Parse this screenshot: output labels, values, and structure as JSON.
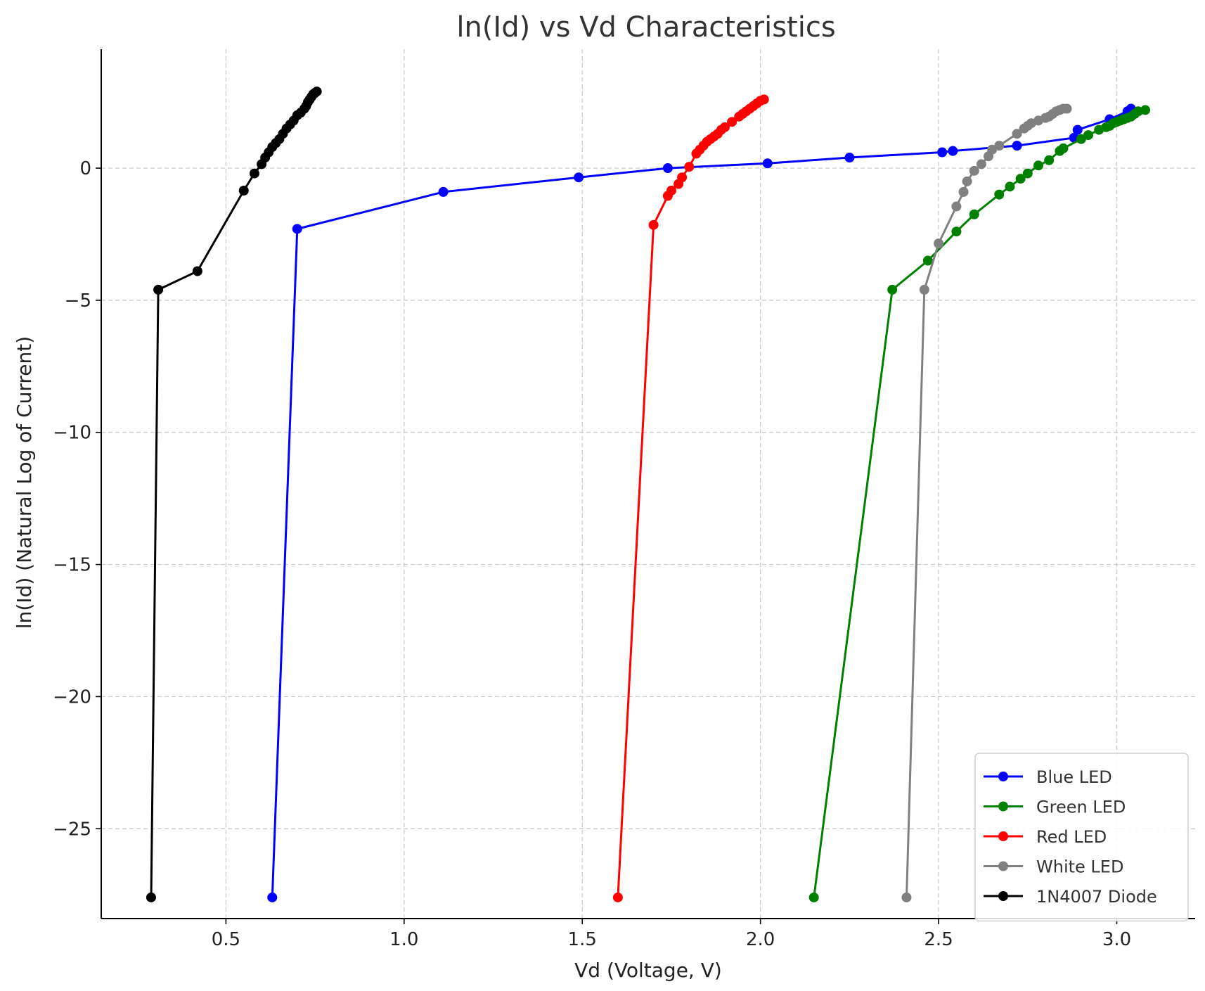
{
  "chart_data": {
    "type": "line",
    "title": "ln(Id) vs Vd Characteristics",
    "xlabel": "Vd (Voltage, V)",
    "ylabel": "ln(Id) (Natural Log of Current)",
    "xlim": [
      0.15,
      3.22
    ],
    "ylim": [
      -28.4,
      4.5
    ],
    "x_ticks": [
      0.5,
      1.0,
      1.5,
      2.0,
      2.5,
      3.0
    ],
    "x_tick_labels": [
      "0.5",
      "1.0",
      "1.5",
      "2.0",
      "2.5",
      "3.0"
    ],
    "y_ticks": [
      0,
      -5,
      -10,
      -15,
      -20,
      -25
    ],
    "y_tick_labels": [
      "0",
      "−5",
      "−10",
      "−15",
      "−20",
      "−25"
    ],
    "grid": true,
    "legend_position": "bottom-right",
    "series": [
      {
        "name": "Blue LED",
        "color": "#0000ff",
        "x": [
          0.63,
          0.7,
          1.11,
          1.49,
          1.74,
          2.02,
          2.25,
          2.51,
          2.54,
          2.72,
          2.88,
          2.89,
          2.98,
          3.03,
          3.04
        ],
        "y": [
          -27.6,
          -2.3,
          -0.9,
          -0.35,
          0.0,
          0.18,
          0.4,
          0.6,
          0.65,
          0.85,
          1.15,
          1.45,
          1.85,
          2.15,
          2.25
        ]
      },
      {
        "name": "Green LED",
        "color": "#008000",
        "x": [
          2.15,
          2.37,
          2.47,
          2.55,
          2.6,
          2.67,
          2.7,
          2.73,
          2.75,
          2.78,
          2.81,
          2.84,
          2.85,
          2.9,
          2.92,
          2.95,
          2.97,
          2.98,
          2.99,
          3.0,
          3.01,
          3.02,
          3.03,
          3.04,
          3.05,
          3.06,
          3.08
        ],
        "y": [
          -27.6,
          -4.6,
          -3.5,
          -2.4,
          -1.75,
          -1.0,
          -0.7,
          -0.4,
          -0.2,
          0.1,
          0.3,
          0.65,
          0.75,
          1.1,
          1.25,
          1.45,
          1.55,
          1.6,
          1.7,
          1.75,
          1.8,
          1.85,
          1.9,
          1.95,
          2.05,
          2.15,
          2.2
        ]
      },
      {
        "name": "Red LED",
        "color": "#ff0000",
        "x": [
          1.6,
          1.7,
          1.74,
          1.75,
          1.77,
          1.78,
          1.8,
          1.82,
          1.83,
          1.84,
          1.85,
          1.86,
          1.87,
          1.88,
          1.89,
          1.9,
          1.92,
          1.94,
          1.95,
          1.96,
          1.97,
          1.98,
          1.99,
          2.0,
          2.01
        ],
        "y": [
          -27.6,
          -2.15,
          -1.05,
          -0.85,
          -0.6,
          -0.35,
          0.05,
          0.55,
          0.7,
          0.85,
          1.0,
          1.1,
          1.2,
          1.3,
          1.45,
          1.55,
          1.75,
          1.95,
          2.05,
          2.15,
          2.25,
          2.35,
          2.45,
          2.55,
          2.6
        ]
      },
      {
        "name": "White LED",
        "color": "#808080",
        "x": [
          2.41,
          2.46,
          2.5,
          2.55,
          2.57,
          2.58,
          2.6,
          2.62,
          2.64,
          2.65,
          2.67,
          2.72,
          2.74,
          2.75,
          2.76,
          2.78,
          2.8,
          2.81,
          2.82,
          2.83,
          2.84,
          2.85,
          2.86
        ],
        "y": [
          -27.6,
          -4.6,
          -2.85,
          -1.45,
          -0.9,
          -0.5,
          -0.1,
          0.15,
          0.45,
          0.7,
          0.85,
          1.3,
          1.5,
          1.6,
          1.7,
          1.8,
          1.9,
          1.95,
          2.05,
          2.15,
          2.2,
          2.25,
          2.25
        ]
      },
      {
        "name": "1N4007 Diode",
        "color": "#000000",
        "x": [
          0.29,
          0.31,
          0.42,
          0.55,
          0.58,
          0.6,
          0.61,
          0.62,
          0.63,
          0.64,
          0.65,
          0.66,
          0.67,
          0.68,
          0.69,
          0.7,
          0.71,
          0.72,
          0.725,
          0.73,
          0.735,
          0.74,
          0.745,
          0.75,
          0.755
        ],
        "y": [
          -27.6,
          -4.6,
          -3.9,
          -0.85,
          -0.2,
          0.15,
          0.4,
          0.6,
          0.8,
          0.95,
          1.1,
          1.3,
          1.5,
          1.65,
          1.8,
          2.0,
          2.1,
          2.25,
          2.35,
          2.5,
          2.6,
          2.7,
          2.8,
          2.85,
          2.9
        ]
      }
    ]
  }
}
